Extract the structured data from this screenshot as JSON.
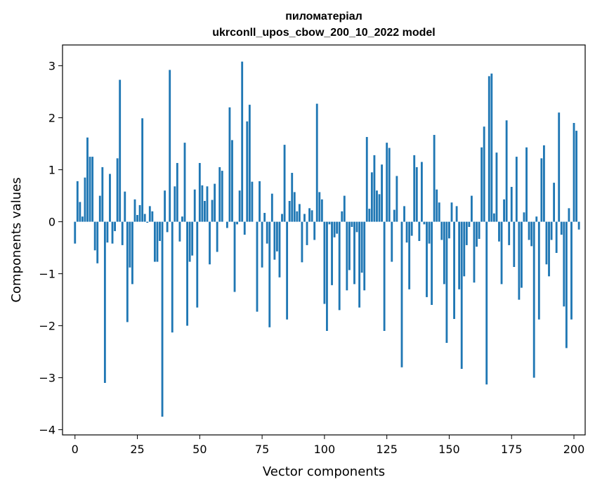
{
  "chart_data": {
    "type": "bar",
    "title_line1": "пиломатеріал",
    "title_line2": "ukrconll_upos_cbow_200_10_2022 model",
    "xlabel": "Vector components",
    "ylabel": "Components values",
    "xlim": [
      -5,
      204.5
    ],
    "ylim": [
      -4.1,
      3.4
    ],
    "xticks": [
      0,
      25,
      50,
      75,
      100,
      125,
      150,
      175,
      200
    ],
    "yticks": [
      -4,
      -3,
      -2,
      -1,
      0,
      1,
      2,
      3
    ],
    "bar_color": "#1f77b4",
    "grid": false,
    "values": [
      -0.42,
      0.78,
      0.38,
      0.1,
      0.85,
      1.62,
      1.25,
      1.25,
      -0.55,
      -0.8,
      0.5,
      1.05,
      -3.1,
      -0.4,
      0.92,
      -0.42,
      -0.18,
      1.22,
      2.73,
      -0.45,
      0.58,
      -1.93,
      -0.88,
      -1.2,
      0.43,
      0.13,
      0.32,
      1.99,
      0.15,
      -0.02,
      0.3,
      0.2,
      -0.77,
      -0.77,
      -0.37,
      -3.75,
      0.6,
      -0.2,
      2.92,
      -2.13,
      0.68,
      1.13,
      -0.38,
      0.1,
      1.52,
      -2.0,
      -0.77,
      -0.65,
      0.62,
      -1.65,
      1.13,
      0.7,
      0.4,
      0.68,
      -0.82,
      0.42,
      0.73,
      -0.58,
      1.05,
      0.98,
      0.0,
      -0.12,
      2.2,
      1.57,
      -1.35,
      -0.05,
      0.6,
      3.08,
      -0.25,
      1.93,
      2.25,
      0.77,
      0.0,
      -1.73,
      0.78,
      -0.88,
      0.17,
      -0.42,
      -2.03,
      0.54,
      -0.73,
      -0.57,
      -1.07,
      0.15,
      1.48,
      -1.88,
      0.4,
      0.94,
      0.57,
      0.2,
      0.34,
      -0.78,
      0.15,
      -0.45,
      0.26,
      0.22,
      -0.35,
      2.27,
      0.57,
      0.43,
      -1.58,
      -2.1,
      -0.05,
      -1.22,
      -0.3,
      -0.23,
      -1.7,
      0.2,
      0.5,
      -1.32,
      -0.93,
      -0.1,
      -1.2,
      -0.2,
      -1.65,
      -0.98,
      -1.32,
      1.63,
      0.25,
      0.95,
      1.28,
      0.6,
      0.53,
      1.1,
      -2.1,
      1.52,
      1.42,
      -0.77,
      0.23,
      0.88,
      0.0,
      -2.8,
      0.3,
      -0.4,
      -1.3,
      -0.27,
      1.28,
      1.05,
      -0.37,
      1.15,
      -0.05,
      -1.45,
      -0.42,
      -1.6,
      1.67,
      0.62,
      0.37,
      -0.35,
      -1.2,
      -2.33,
      -0.32,
      0.37,
      -1.87,
      0.3,
      -1.3,
      -2.83,
      -1.05,
      -0.45,
      -0.1,
      0.5,
      -1.17,
      -0.48,
      -0.33,
      1.43,
      1.83,
      -3.13,
      2.8,
      2.85,
      0.16,
      1.33,
      -0.38,
      -1.2,
      0.43,
      1.95,
      -0.45,
      0.67,
      -0.87,
      1.25,
      -1.5,
      -1.27,
      0.18,
      1.43,
      -0.35,
      -0.47,
      -3.0,
      0.1,
      -1.88,
      1.22,
      1.47,
      -0.82,
      -1.05,
      -0.35,
      0.75,
      -0.6,
      2.1,
      -0.25,
      -1.63,
      -2.43,
      0.26,
      -1.88,
      1.9,
      1.75,
      -0.15
    ]
  }
}
